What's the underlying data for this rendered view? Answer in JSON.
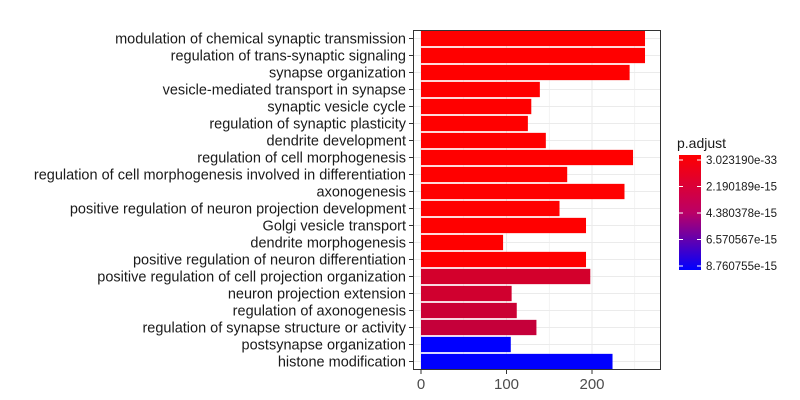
{
  "chart_data": {
    "type": "bar",
    "orientation": "horizontal",
    "categories": [
      "modulation of chemical synaptic transmission",
      "regulation of trans-synaptic signaling",
      "synapse organization",
      "vesicle-mediated transport in synapse",
      "synaptic vesicle cycle",
      "regulation of synaptic plasticity",
      "dendrite development",
      "regulation of cell morphogenesis",
      "regulation of cell morphogenesis involved in differentiation",
      "axonogenesis",
      "positive regulation of neuron projection development",
      "Golgi vesicle transport",
      "dendrite morphogenesis",
      "positive regulation of neuron differentiation",
      "positive regulation of cell projection organization",
      "neuron projection extension",
      "regulation of axonogenesis",
      "regulation of synapse structure or activity",
      "postsynapse organization",
      "histone modification"
    ],
    "values": [
      262,
      262,
      244,
      139,
      129,
      125,
      146,
      248,
      171,
      238,
      162,
      193,
      96,
      193,
      198,
      106,
      112,
      135,
      105,
      224
    ],
    "p_adjust": [
      3e-33,
      3e-33,
      3e-33,
      3e-33,
      3e-33,
      3e-33,
      3e-33,
      3e-33,
      3e-33,
      3e-33,
      3e-33,
      3e-33,
      3e-33,
      3e-33,
      1.5e-15,
      1.6e-15,
      1.8e-15,
      2e-15,
      8.76e-15,
      8.76e-15
    ],
    "xticks": [
      0,
      100,
      200
    ],
    "xlim": [
      0,
      275
    ],
    "xlabel": "",
    "ylabel": "",
    "grid": true,
    "legend": {
      "title": "p.adjust",
      "position": "right",
      "labels": [
        "3.023190e-33",
        "2.190189e-15",
        "4.380378e-15",
        "6.570567e-15",
        "8.760755e-15"
      ],
      "values": [
        3.02319e-33,
        2.190189e-15,
        4.380378e-15,
        6.570567e-15,
        8.760755e-15
      ],
      "color_low_p": "#FF0000",
      "color_high_p": "#0000FF"
    },
    "colors": {
      "background": "#ffffff",
      "panel_border": "#333333",
      "grid": "#ebebeb"
    }
  }
}
